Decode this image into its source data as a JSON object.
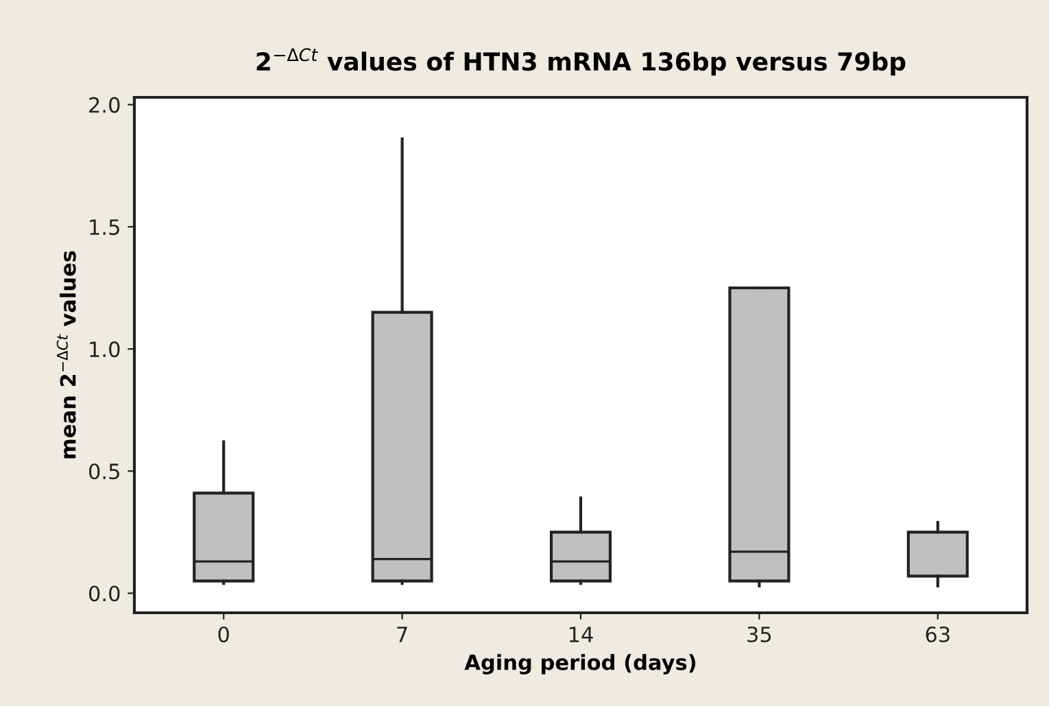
{
  "chart_data": {
    "type": "box",
    "title": "2$^{−ΔCt}$ values of HTN3 mRNA 136bp versus 79bp",
    "xlabel": "Aging period (days)",
    "ylabel": "mean 2$^{−ΔCt}$ values",
    "categories": [
      "0",
      "7",
      "14",
      "35",
      "63"
    ],
    "boxes": [
      {
        "low": 0.04,
        "q1": 0.05,
        "median": 0.13,
        "q3": 0.41,
        "high": 0.62
      },
      {
        "low": 0.04,
        "q1": 0.05,
        "median": 0.14,
        "q3": 1.15,
        "high": 1.86
      },
      {
        "low": 0.04,
        "q1": 0.05,
        "median": 0.13,
        "q3": 0.25,
        "high": 0.39
      },
      {
        "low": 0.03,
        "q1": 0.05,
        "median": 0.17,
        "q3": 1.25,
        "high": 1.25
      },
      {
        "low": 0.03,
        "q1": 0.07,
        "median": 0.07,
        "q3": 0.25,
        "high": 0.29
      }
    ],
    "color": "#c0c0c0",
    "ylim": [
      -0.08,
      2.03
    ],
    "yticks": [
      {
        "value": 0,
        "label": "0.0"
      },
      {
        "value": 0.5,
        "label": "0.5"
      },
      {
        "value": 1,
        "label": "1.0"
      },
      {
        "value": 1.5,
        "label": "1.5"
      },
      {
        "value": 2,
        "label": "2.0"
      }
    ],
    "grid": false,
    "legend": false
  }
}
